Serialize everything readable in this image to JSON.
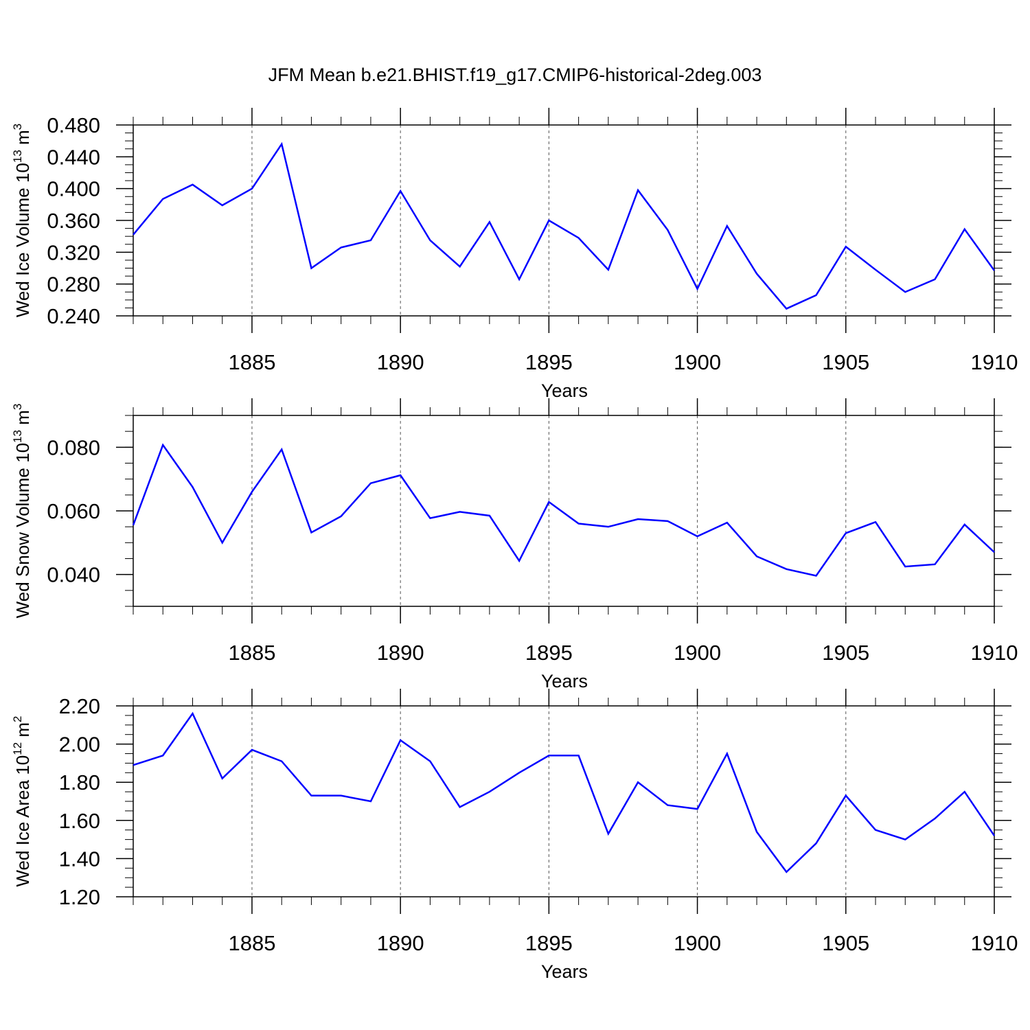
{
  "title": "JFM Mean b.e21.BHIST.f19_g17.CMIP6-historical-2deg.003",
  "colors": {
    "line": "#0000ff",
    "axis": "#000000",
    "grid": "#555555"
  },
  "chart_data": [
    {
      "type": "line",
      "ylabel": "Wed Ice Volume 10",
      "ylabel_exp": "13",
      "ylabel_unit": "m",
      "ylabel_unit_exp": "3",
      "xlabel": "Years",
      "xlim": [
        1881,
        1910
      ],
      "ylim": [
        0.24,
        0.48
      ],
      "yticks": [
        "0.240",
        "0.280",
        "0.320",
        "0.360",
        "0.400",
        "0.440",
        "0.480"
      ],
      "xticks": [
        "1885",
        "1890",
        "1895",
        "1900",
        "1905",
        "1910"
      ],
      "grid": "vertical dashed at major x ticks",
      "x": [
        1881,
        1882,
        1883,
        1884,
        1885,
        1886,
        1887,
        1888,
        1889,
        1890,
        1891,
        1892,
        1893,
        1894,
        1895,
        1896,
        1897,
        1898,
        1899,
        1900,
        1901,
        1902,
        1903,
        1904,
        1905,
        1906,
        1907,
        1908,
        1909,
        1910
      ],
      "values": [
        0.342,
        0.387,
        0.405,
        0.379,
        0.4,
        0.456,
        0.3,
        0.326,
        0.335,
        0.397,
        0.335,
        0.302,
        0.358,
        0.286,
        0.36,
        0.338,
        0.298,
        0.398,
        0.348,
        0.274,
        0.353,
        0.293,
        0.249,
        0.266,
        0.327,
        0.298,
        0.27,
        0.286,
        0.349,
        0.297
      ]
    },
    {
      "type": "line",
      "ylabel": "Wed Snow Volume 10",
      "ylabel_exp": "13",
      "ylabel_unit": "m",
      "ylabel_unit_exp": "3",
      "xlabel": "Years",
      "xlim": [
        1881,
        1910
      ],
      "ylim": [
        0.03,
        0.09
      ],
      "yticks": [
        "0.040",
        "0.060",
        "0.080"
      ],
      "ytick_values": [
        0.04,
        0.06,
        0.08
      ],
      "xticks": [
        "1885",
        "1890",
        "1895",
        "1900",
        "1905",
        "1910"
      ],
      "grid": "vertical dashed at major x ticks",
      "x": [
        1881,
        1882,
        1883,
        1884,
        1885,
        1886,
        1887,
        1888,
        1889,
        1890,
        1891,
        1892,
        1893,
        1894,
        1895,
        1896,
        1897,
        1898,
        1899,
        1900,
        1901,
        1902,
        1903,
        1904,
        1905,
        1906,
        1907,
        1908,
        1909,
        1910
      ],
      "values": [
        0.0555,
        0.0807,
        0.0675,
        0.05,
        0.066,
        0.0793,
        0.0532,
        0.0583,
        0.0687,
        0.0712,
        0.0577,
        0.0597,
        0.0585,
        0.0443,
        0.0628,
        0.056,
        0.055,
        0.0574,
        0.0568,
        0.052,
        0.0563,
        0.0457,
        0.0417,
        0.0396,
        0.053,
        0.0565,
        0.0425,
        0.0432,
        0.0557,
        0.047
      ]
    },
    {
      "type": "line",
      "ylabel": "Wed Ice Area 10",
      "ylabel_exp": "12",
      "ylabel_unit": "m",
      "ylabel_unit_exp": "2",
      "xlabel": "Years",
      "xlim": [
        1881,
        1910
      ],
      "ylim": [
        1.2,
        2.2
      ],
      "yticks": [
        "1.20",
        "1.40",
        "1.60",
        "1.80",
        "2.00",
        "2.20"
      ],
      "xticks": [
        "1885",
        "1890",
        "1895",
        "1900",
        "1905",
        "1910"
      ],
      "grid": "vertical dashed at major x ticks",
      "x": [
        1881,
        1882,
        1883,
        1884,
        1885,
        1886,
        1887,
        1888,
        1889,
        1890,
        1891,
        1892,
        1893,
        1894,
        1895,
        1896,
        1897,
        1898,
        1899,
        1900,
        1901,
        1902,
        1903,
        1904,
        1905,
        1906,
        1907,
        1908,
        1909,
        1910
      ],
      "values": [
        1.89,
        1.94,
        2.16,
        1.82,
        1.97,
        1.91,
        1.73,
        1.73,
        1.7,
        2.02,
        1.91,
        1.67,
        1.75,
        1.85,
        1.94,
        1.94,
        1.53,
        1.8,
        1.68,
        1.66,
        1.95,
        1.54,
        1.33,
        1.48,
        1.73,
        1.55,
        1.5,
        1.61,
        1.75,
        1.52
      ]
    }
  ]
}
